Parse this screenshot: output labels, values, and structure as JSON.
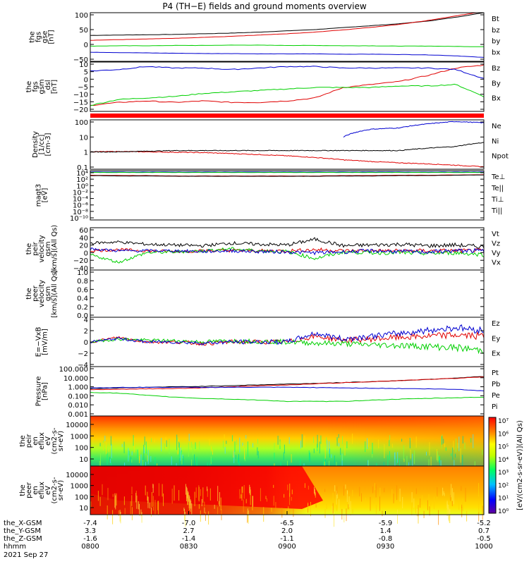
{
  "title": "P4 (TH−E) fields and ground moments overview",
  "colors": {
    "black": "#000000",
    "red": "#e00000",
    "green": "#00d000",
    "blue": "#0000d0"
  },
  "chart_data": {
    "type": "line",
    "date": "2021 Sep 27",
    "time_ticks": [
      "0800",
      "0830",
      "0900",
      "0930",
      "1000"
    ],
    "ephemeris": {
      "labels": [
        "the_X-GSM",
        "the_Y-GSM",
        "the_Z-GSM",
        "hhmm"
      ],
      "x_gsm": [
        "-7.4",
        "-7.0",
        "-6.5",
        "-5.9",
        "-5.2"
      ],
      "y_gsm": [
        "3.3",
        "2.7",
        "2.0",
        "1.4",
        "0.7"
      ],
      "z_gsm": [
        "-1.6",
        "-1.4",
        "-1.1",
        "-0.8",
        "-0.5"
      ]
    },
    "panels": [
      {
        "id": "fgs-gse",
        "ylabel": [
          "the",
          "fgs",
          "gse",
          "[nT]"
        ],
        "ylim": [
          -50,
          100
        ],
        "yticks": [
          "100",
          "50",
          "0",
          "−50"
        ],
        "series": [
          {
            "name": "Bt",
            "color": "#000000",
            "values": [
              30,
              31,
              32,
              33,
              35,
              37,
              40,
              44,
              48,
              54,
              60,
              66,
              74,
              86,
              100
            ]
          },
          {
            "name": "bz",
            "color": "#e00000",
            "values": [
              15,
              17,
              19,
              21,
              24,
              27,
              31,
              35,
              40,
              47,
              55,
              64,
              76,
              90,
              104
            ]
          },
          {
            "name": "by",
            "color": "#00d000",
            "values": [
              -3,
              -2,
              -2,
              -1,
              -1,
              0,
              0,
              -1,
              -1,
              -2,
              -2,
              -3,
              -3,
              -4,
              -5
            ]
          },
          {
            "name": "bx",
            "color": "#0000d0",
            "values": [
              -22,
              -23,
              -24,
              -25,
              -26,
              -26,
              -27,
              -27,
              -27,
              -28,
              -28,
              -29,
              -30,
              -33,
              -38
            ]
          }
        ]
      },
      {
        "id": "fgs-gsm",
        "ylabel": [
          "the",
          "fgs",
          "gsm",
          "_dsl",
          "[nT]"
        ],
        "ylim": [
          -22,
          11
        ],
        "yticks": [
          "10",
          "5",
          "0",
          "−5",
          "−10",
          "−15",
          "−20"
        ],
        "series": [
          {
            "name": "Bz",
            "color": "#e00000",
            "values": [
              -18,
              -16,
              -15,
              -16,
              -15,
              -16,
              -16,
              -15,
              -13,
              -6,
              -4,
              -2,
              2,
              7,
              9
            ]
          },
          {
            "name": "By",
            "color": "#00d000",
            "values": [
              -18,
              -14,
              -13,
              -12,
              -10,
              -9,
              -8,
              -7,
              -6,
              -6,
              -6,
              -5,
              -5,
              -4,
              -12
            ]
          },
          {
            "name": "Bx",
            "color": "#0000d0",
            "values": [
              5,
              6,
              8,
              7,
              7,
              6,
              7,
              8,
              8,
              7,
              7,
              7,
              7,
              6,
              0
            ]
          }
        ]
      },
      {
        "id": "density",
        "ylabel": [
          "Density",
          "[1/cc]",
          "[cm-3]"
        ],
        "log": true,
        "ylim": [
          0.04,
          200
        ],
        "yticks": [
          "100",
          "10",
          "1",
          "0.1"
        ],
        "series": [
          {
            "name": "Ne",
            "color": "#e00000",
            "values": [
              0.8,
              0.85,
              0.8,
              0.75,
              0.7,
              0.6,
              0.5,
              0.4,
              0.3,
              0.2,
              0.15,
              0.12,
              0.1,
              0.08,
              0.06
            ]
          },
          {
            "name": "Ni",
            "color": "#000000",
            "values": [
              0.8,
              0.8,
              0.9,
              1,
              1,
              1,
              1,
              1,
              1,
              1,
              1,
              1,
              1.5,
              2,
              4
            ]
          },
          {
            "name": "Npot",
            "color": "#0000d0",
            "values": [
              null,
              null,
              null,
              null,
              null,
              null,
              null,
              null,
              null,
              10,
              40,
              50,
              100,
              150,
              120
            ]
          }
        ]
      },
      {
        "id": "temperature",
        "ylabel": [
          "magt3",
          "[eV]"
        ],
        "log": true,
        "ylim": [
          1e-10,
          10000.0
        ],
        "yticks": [
          "10⁴",
          "10²",
          "10⁰",
          "10⁻²",
          "10⁻⁴",
          "10⁻⁶",
          "10⁻⁸",
          "10⁻¹⁰"
        ],
        "series": [
          {
            "name": "Te⊥",
            "color": "#e00000",
            "values": [
              500,
              400,
              400,
              300,
              300,
              300,
              300,
              300,
              300,
              400,
              400,
              500,
              500,
              600,
              700
            ]
          },
          {
            "name": "Te||",
            "color": "#000000",
            "values": [
              400,
              300,
              300,
              250,
              250,
              250,
              250,
              250,
              250,
              300,
              300,
              400,
              400,
              500,
              600
            ]
          },
          {
            "name": "Ti⊥",
            "color": "#0000d0",
            "values": [
              4000,
              4000,
              4000,
              4000,
              4000,
              4000,
              4000,
              4000,
              4000,
              4000,
              4000,
              4000,
              4000,
              4000,
              4000
            ]
          },
          {
            "name": "Ti||",
            "color": "#00d000",
            "values": [
              3000,
              3000,
              3000,
              3000,
              3000,
              3000,
              3000,
              3000,
              3000,
              3000,
              3000,
              3000,
              3000,
              3000,
              3000
            ]
          }
        ]
      },
      {
        "id": "peir-velocity",
        "ylabel": [
          "the",
          "peir",
          "velocity",
          "gsm",
          "[km/s](All Qs)"
        ],
        "ylim": [
          -45,
          65
        ],
        "yticks": [
          "60",
          "40",
          "20",
          "0",
          "−20",
          "−40"
        ],
        "series": [
          {
            "name": "Vt",
            "color": "#000000",
            "values": [
              25,
              28,
              22,
              20,
              18,
              25,
              22,
              20,
              35,
              18,
              20,
              22,
              18,
              20,
              15
            ]
          },
          {
            "name": "Vz",
            "color": "#e00000",
            "values": [
              5,
              8,
              5,
              3,
              5,
              6,
              5,
              5,
              8,
              5,
              5,
              5,
              5,
              5,
              5
            ]
          },
          {
            "name": "Vy",
            "color": "#00d000",
            "values": [
              -5,
              -25,
              0,
              2,
              5,
              10,
              5,
              3,
              -15,
              2,
              0,
              0,
              -2,
              0,
              -5
            ]
          },
          {
            "name": "Vx",
            "color": "#0000d0",
            "values": [
              10,
              5,
              5,
              5,
              3,
              5,
              3,
              2,
              0,
              2,
              5,
              3,
              2,
              5,
              5
            ]
          }
        ]
      },
      {
        "id": "peer-velocity",
        "ylabel": [
          "the",
          "peer",
          "velocity",
          "gsm",
          "[km/s](All Qs)"
        ],
        "ylim": [
          -0.02,
          1.02
        ],
        "yticks": [
          "1.0",
          "0.8",
          "0.6",
          "0.4",
          "0.2",
          "0.0"
        ],
        "series": [
          {
            "name": "Vt",
            "color": "#000000",
            "values": []
          },
          {
            "name": "Vz",
            "color": "#e00000",
            "values": []
          },
          {
            "name": "Vy",
            "color": "#00d000",
            "values": []
          },
          {
            "name": "Vx",
            "color": "#0000d0",
            "values": []
          }
        ]
      },
      {
        "id": "e-field",
        "ylabel": [
          "E=−VxB",
          "[mV/m]"
        ],
        "ylim": [
          -4.3,
          4.3
        ],
        "yticks": [
          "4",
          "2",
          "0",
          "−2",
          "−4"
        ],
        "series": [
          {
            "name": "Ez",
            "color": "#e00000",
            "values": [
              0,
              0.8,
              0,
              0,
              -0.3,
              0,
              0,
              0,
              1,
              0.3,
              0.5,
              0.8,
              1,
              1.2,
              1
            ]
          },
          {
            "name": "Ey",
            "color": "#00d000",
            "values": [
              0,
              0.5,
              0.3,
              0.2,
              0,
              0.2,
              0.1,
              0,
              -0.2,
              -0.3,
              -0.5,
              -0.6,
              -0.8,
              -1,
              -1.5
            ]
          },
          {
            "name": "Ex",
            "color": "#0000d0",
            "values": [
              0,
              0.6,
              0,
              0,
              -0.2,
              0,
              0,
              0,
              1.5,
              0.5,
              1,
              1.5,
              2,
              2.5,
              2
            ]
          }
        ]
      },
      {
        "id": "pressure",
        "ylabel": [
          "Pressure",
          "[nPa]"
        ],
        "log": true,
        "ylim": [
          0.001,
          100
        ],
        "yticks": [
          "100.000",
          "10.000",
          "1.000",
          "0.100",
          "0.010",
          "0.001"
        ],
        "series": [
          {
            "name": "Pt",
            "color": "#000000",
            "values": [
              0.6,
              0.7,
              0.8,
              0.9,
              1,
              1.2,
              1.4,
              1.7,
              2,
              2.4,
              3,
              3.8,
              5,
              7,
              10
            ]
          },
          {
            "name": "Pb",
            "color": "#e00000",
            "values": [
              0.45,
              0.5,
              0.55,
              0.6,
              0.7,
              0.9,
              1.1,
              1.4,
              1.8,
              2.3,
              3,
              3.8,
              5,
              6.5,
              9
            ]
          },
          {
            "name": "Pe",
            "color": "#00d000",
            "values": [
              0.25,
              0.2,
              0.12,
              0.08,
              0.06,
              0.05,
              0.04,
              0.03,
              0.03,
              0.03,
              0.04,
              0.05,
              0.06,
              0.07,
              0.08
            ]
          },
          {
            "name": "Pi",
            "color": "#0000d0",
            "values": [
              0.7,
              0.75,
              0.8,
              0.8,
              0.8,
              0.8,
              0.8,
              0.8,
              0.75,
              0.7,
              0.65,
              0.6,
              0.55,
              0.5,
              0.35
            ]
          }
        ]
      }
    ],
    "spectrograms": [
      {
        "id": "peir-eflux",
        "ylabel": [
          "the",
          "peir",
          "en",
          "eflux",
          "eV",
          "(cm2-s-",
          "sr-eV)"
        ],
        "yticks": [
          "10000",
          "1000",
          "100",
          "10"
        ]
      },
      {
        "id": "peer-eflux",
        "ylabel": [
          "the",
          "peer",
          "en",
          "eflux",
          "eV",
          "(cm2-s-",
          "sr-eV)"
        ],
        "yticks": [
          "10000",
          "1000",
          "100",
          "10"
        ]
      }
    ],
    "colorbar": {
      "label": "[eV/(cm2-s-sr-eV)](All Qs)",
      "ticks": [
        "10⁷",
        "10⁶",
        "10⁵",
        "10⁴",
        "10³",
        "10²",
        "10¹",
        "10⁰"
      ]
    }
  }
}
